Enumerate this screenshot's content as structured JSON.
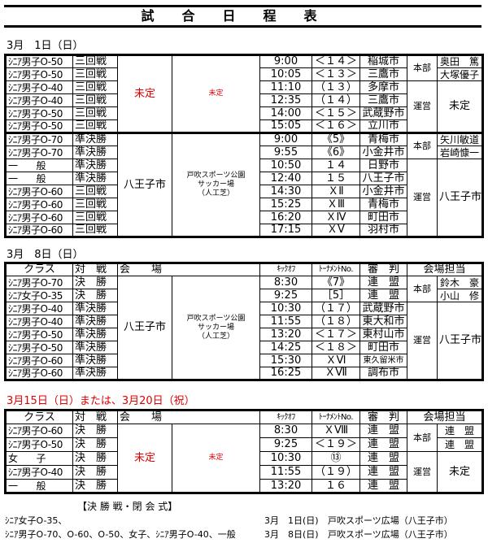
{
  "title": "試合日程表",
  "headers": {
    "class": "クラス",
    "match": "対　戦",
    "venue": "会　　場",
    "kickoff": "ｷｯｸｵﾌ",
    "no": "ﾄｰﾅﾒﾝﾄNo.",
    "referee": "審　判",
    "charge": "会場担当"
  },
  "sections": [
    {
      "date": "3月　1日（日）",
      "show_header": false,
      "rows": [
        {
          "class": "ｼﾆｱ男子O-50",
          "match": "三回戦",
          "time": "9:00",
          "no": "＜１４＞",
          "referee": "稲城市"
        },
        {
          "class": "ｼﾆｱ男子O-50",
          "match": "三回戦",
          "time": "10:05",
          "no": "＜１３＞",
          "referee": "三鷹市"
        },
        {
          "class": "ｼﾆｱ男子O-40",
          "match": "三回戦",
          "time": "11:10",
          "no": "（１３）",
          "referee": "多摩市"
        },
        {
          "class": "ｼﾆｱ男子O-40",
          "match": "三回戦",
          "time": "12:35",
          "no": "（１４）",
          "referee": "三鷹市"
        },
        {
          "class": "ｼﾆｱ男子O-50",
          "match": "三回戦",
          "time": "14:00",
          "no": "＜１５＞",
          "referee": "武蔵野市"
        },
        {
          "class": "ｼﾆｱ男子O-50",
          "match": "三回戦",
          "time": "15:05",
          "no": "＜１６＞",
          "referee": "立川市"
        },
        {
          "class": "ｼﾆｱ男子O-70",
          "match": "準決勝",
          "time": "9:00",
          "no": "《5》",
          "referee": "青梅市"
        },
        {
          "class": "ｼﾆｱ男子O-70",
          "match": "準決勝",
          "time": "9:55",
          "no": "《6》",
          "referee": "小金井市"
        },
        {
          "class": "一　　般",
          "match": "準決勝",
          "time": "10:50",
          "no": "１４",
          "referee": "日野市"
        },
        {
          "class": "一　　般",
          "match": "準決勝",
          "time": "12:40",
          "no": "１５",
          "referee": "八王子市"
        },
        {
          "class": "ｼﾆｱ男子O-60",
          "match": "三回戦",
          "time": "14:30",
          "no": "ＸⅡ",
          "referee": "小金井市"
        },
        {
          "class": "ｼﾆｱ男子O-60",
          "match": "三回戦",
          "time": "15:25",
          "no": "ＸⅢ",
          "referee": "青梅市"
        },
        {
          "class": "ｼﾆｱ男子O-60",
          "match": "三回戦",
          "time": "16:20",
          "no": "ＸⅣ",
          "referee": "町田市"
        },
        {
          "class": "ｼﾆｱ男子O-60",
          "match": "三回戦",
          "time": "17:15",
          "no": "ＸⅤ",
          "referee": "羽村市"
        }
      ],
      "venues": [
        {
          "city": "未定",
          "place": "未定",
          "span": 6,
          "red": true
        },
        {
          "city": "八王子市",
          "place": "戸吹スポーツ公園\nサッカー場\n（人工芝）",
          "span": 8,
          "red": false
        }
      ],
      "charges": [
        {
          "role": "本部",
          "span": 2,
          "names": [
            "奥田　篤",
            "大塚優子"
          ]
        },
        {
          "role": "運営",
          "span": 4,
          "names": [
            "未定"
          ]
        },
        {
          "role": "本部",
          "span": 2,
          "names": [
            "矢川敏道",
            "岩崎慷一"
          ]
        },
        {
          "role": "運営",
          "span": 6,
          "names": [
            "八王子市"
          ]
        }
      ]
    },
    {
      "date": "3月　8日（日）",
      "show_header": true,
      "rows": [
        {
          "class": "ｼﾆｱ男子O-70",
          "match": "決　勝",
          "time": "8:30",
          "no": "《7》",
          "referee": "連　盟"
        },
        {
          "class": "ｼﾆｱ女子O-35",
          "match": "決　勝",
          "time": "9:25",
          "no": "［5］",
          "referee": "連　盟"
        },
        {
          "class": "ｼﾆｱ男子O-40",
          "match": "準決勝",
          "time": "10:30",
          "no": "（１７）",
          "referee": "武蔵野市"
        },
        {
          "class": "ｼﾆｱ男子O-40",
          "match": "準決勝",
          "time": "11:55",
          "no": "（１８）",
          "referee": "東大和市"
        },
        {
          "class": "ｼﾆｱ男子O-50",
          "match": "準決勝",
          "time": "13:20",
          "no": "＜１７＞",
          "referee": "東村山市"
        },
        {
          "class": "ｼﾆｱ男子O-50",
          "match": "準決勝",
          "time": "14:25",
          "no": "＜１８＞",
          "referee": "町田市"
        },
        {
          "class": "ｼﾆｱ男子O-60",
          "match": "準決勝",
          "time": "15:30",
          "no": "ＸⅥ",
          "referee": "東久留米市"
        },
        {
          "class": "ｼﾆｱ男子O-60",
          "match": "準決勝",
          "time": "16:25",
          "no": "ＸⅦ",
          "referee": "調布市"
        }
      ],
      "venues": [
        {
          "city": "八王子市",
          "place": "戸吹スポーツ公園\nサッカー場\n（人工芝）",
          "span": 8,
          "red": false
        }
      ],
      "charges": [
        {
          "role": "本部",
          "span": 2,
          "names": [
            "鈴木　豪",
            "小山　修"
          ]
        },
        {
          "role": "運営",
          "span": 6,
          "names": [
            "八王子市"
          ]
        }
      ]
    },
    {
      "date": "3月15日（日）または、3月20日（祝）",
      "date_red": true,
      "show_header": true,
      "rows": [
        {
          "class": "ｼﾆｱ男子O-60",
          "match": "決　勝",
          "time": "8:30",
          "no": "ＸⅧ",
          "referee": "連　盟"
        },
        {
          "class": "ｼﾆｱ男子O-50",
          "match": "決　勝",
          "time": "9:25",
          "no": "＜１９＞",
          "referee": "連　盟"
        },
        {
          "class": "女　　子",
          "match": "決　勝",
          "time": "10:30",
          "no": "⑬",
          "referee": "連　盟"
        },
        {
          "class": "ｼﾆｱ男子O-40",
          "match": "決　勝",
          "time": "11:55",
          "no": "（１９）",
          "referee": "連　盟"
        },
        {
          "class": "一　　般",
          "match": "決　勝",
          "time": "13:20",
          "no": "１６",
          "referee": "連　盟"
        }
      ],
      "venues": [
        {
          "city": "未定",
          "place": "未定",
          "span": 5,
          "red": true
        }
      ],
      "charges": [
        {
          "role": "本部",
          "span": 2,
          "names": [
            "連　盟",
            "連　盟"
          ]
        },
        {
          "role": "運営",
          "span": 3,
          "names": [
            "未定"
          ]
        }
      ]
    }
  ],
  "footer": {
    "title": "【決 勝 戦・閉 会 式】",
    "items": [
      {
        "classes": "ｼﾆｱ女子O-35、",
        "date": "3月　1日(日)",
        "place": "戸吹スポーツ広場（八王子市）"
      },
      {
        "classes": "ｼﾆｱ男子O-70、O-60、O-50、女子、ｼﾆｱ男子O-40、一般",
        "date": "3月　8日(日)",
        "place": "戸吹スポーツ広場（八王子市）"
      }
    ]
  }
}
